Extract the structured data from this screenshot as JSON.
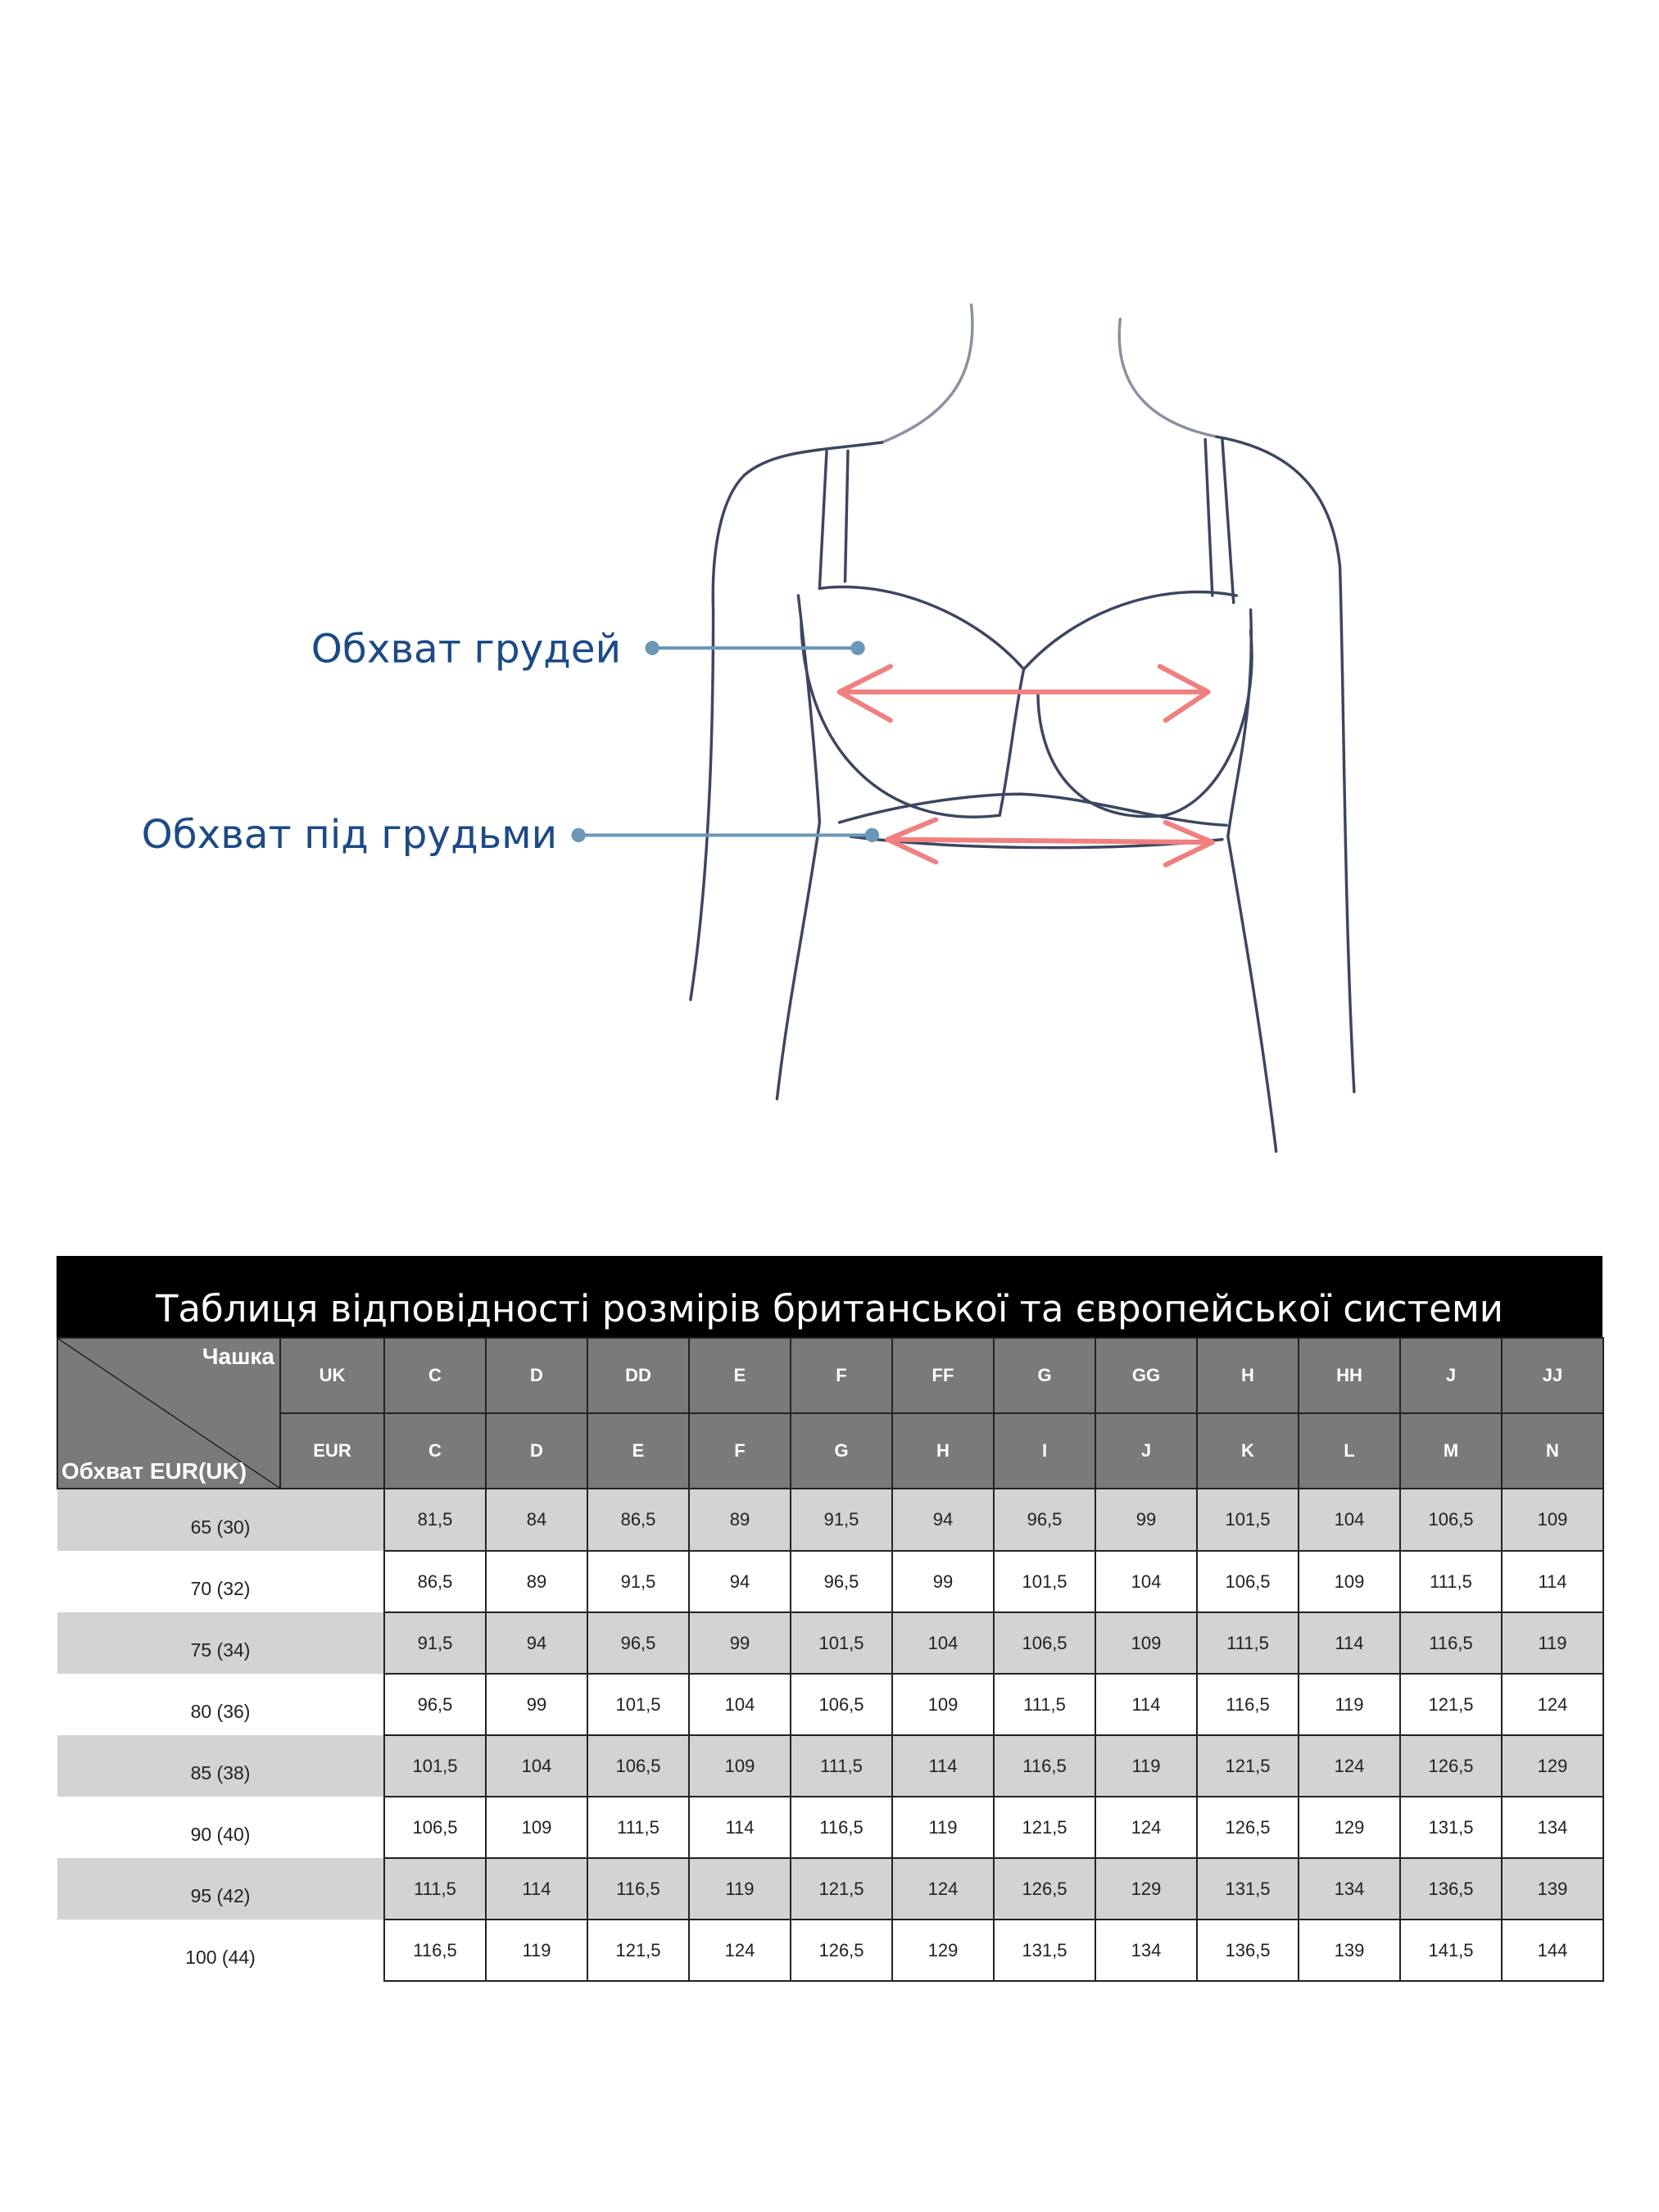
{
  "diagram": {
    "bust_label": "Обхват грудей",
    "underbust_label": "Обхват під грудьми",
    "label_color": "#1d4a86",
    "arrow_color": "#f08080"
  },
  "table": {
    "title": "Таблиця відповідності розмірів британської та європейської системи",
    "corner_cup_label": "Чашка",
    "corner_girth_label": "Обхват EUR(UK)",
    "uk_label": "UK",
    "eur_label": "EUR",
    "uk_cups": [
      "C",
      "D",
      "DD",
      "E",
      "F",
      "FF",
      "G",
      "GG",
      "H",
      "HH",
      "J",
      "JJ"
    ],
    "eur_cups": [
      "C",
      "D",
      "E",
      "F",
      "G",
      "H",
      "I",
      "J",
      "K",
      "L",
      "M",
      "N"
    ],
    "rows": [
      {
        "girth": "65 (30)",
        "values": [
          "81,5",
          "84",
          "86,5",
          "89",
          "91,5",
          "94",
          "96,5",
          "99",
          "101,5",
          "104",
          "106,5",
          "109"
        ]
      },
      {
        "girth": "70 (32)",
        "values": [
          "86,5",
          "89",
          "91,5",
          "94",
          "96,5",
          "99",
          "101,5",
          "104",
          "106,5",
          "109",
          "111,5",
          "114"
        ]
      },
      {
        "girth": "75 (34)",
        "values": [
          "91,5",
          "94",
          "96,5",
          "99",
          "101,5",
          "104",
          "106,5",
          "109",
          "111,5",
          "114",
          "116,5",
          "119"
        ]
      },
      {
        "girth": "80 (36)",
        "values": [
          "96,5",
          "99",
          "101,5",
          "104",
          "106,5",
          "109",
          "111,5",
          "114",
          "116,5",
          "119",
          "121,5",
          "124"
        ]
      },
      {
        "girth": "85 (38)",
        "values": [
          "101,5",
          "104",
          "106,5",
          "109",
          "111,5",
          "114",
          "116,5",
          "119",
          "121,5",
          "124",
          "126,5",
          "129"
        ]
      },
      {
        "girth": "90 (40)",
        "values": [
          "106,5",
          "109",
          "111,5",
          "114",
          "116,5",
          "119",
          "121,5",
          "124",
          "126,5",
          "129",
          "131,5",
          "134"
        ]
      },
      {
        "girth": "95 (42)",
        "values": [
          "111,5",
          "114",
          "116,5",
          "119",
          "121,5",
          "124",
          "126,5",
          "129",
          "131,5",
          "134",
          "136,5",
          "139"
        ]
      },
      {
        "girth": "100 (44)",
        "values": [
          "116,5",
          "119",
          "121,5",
          "124",
          "126,5",
          "129",
          "131,5",
          "134",
          "136,5",
          "139",
          "141,5",
          "144"
        ]
      }
    ]
  }
}
